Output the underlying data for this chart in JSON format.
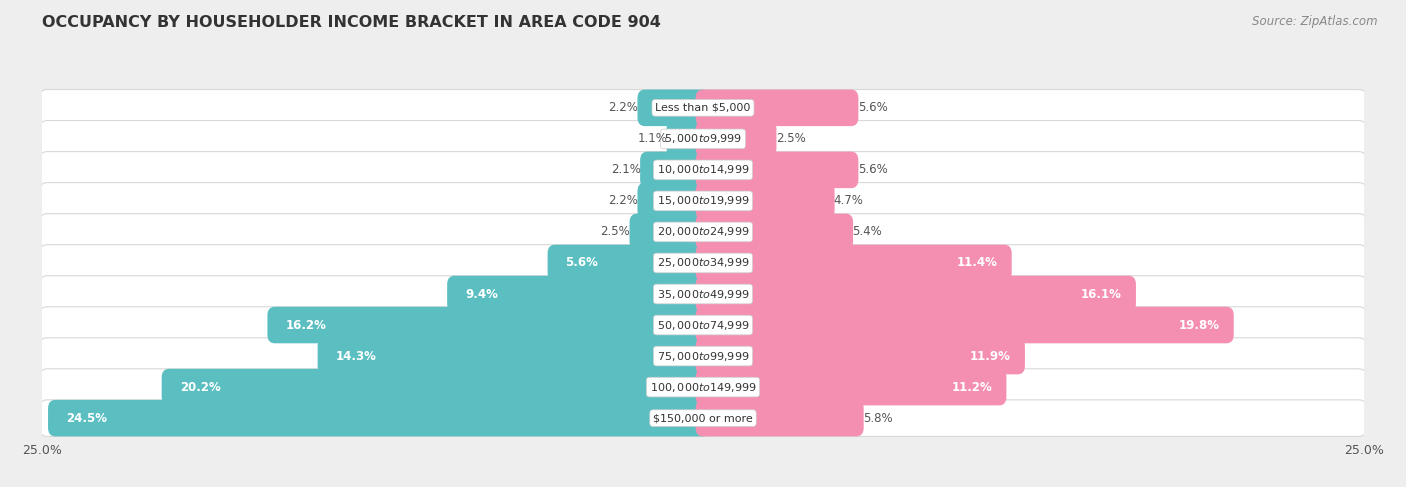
{
  "title": "OCCUPANCY BY HOUSEHOLDER INCOME BRACKET IN AREA CODE 904",
  "source": "Source: ZipAtlas.com",
  "categories": [
    "Less than $5,000",
    "$5,000 to $9,999",
    "$10,000 to $14,999",
    "$15,000 to $19,999",
    "$20,000 to $24,999",
    "$25,000 to $34,999",
    "$35,000 to $49,999",
    "$50,000 to $74,999",
    "$75,000 to $99,999",
    "$100,000 to $149,999",
    "$150,000 or more"
  ],
  "owner_values": [
    2.2,
    1.1,
    2.1,
    2.2,
    2.5,
    5.6,
    9.4,
    16.2,
    14.3,
    20.2,
    24.5
  ],
  "renter_values": [
    5.6,
    2.5,
    5.6,
    4.7,
    5.4,
    11.4,
    16.1,
    19.8,
    11.9,
    11.2,
    5.8
  ],
  "owner_color": "#5BBFC2",
  "renter_color": "#F48FB1",
  "background_color": "#eeeeee",
  "bar_bg_color": "#f0f0f0",
  "bar_bg_edge": "#d8d8d8",
  "max_value": 25.0,
  "bar_height": 0.62,
  "owner_label_threshold": 5.0,
  "renter_label_threshold": 10.0
}
